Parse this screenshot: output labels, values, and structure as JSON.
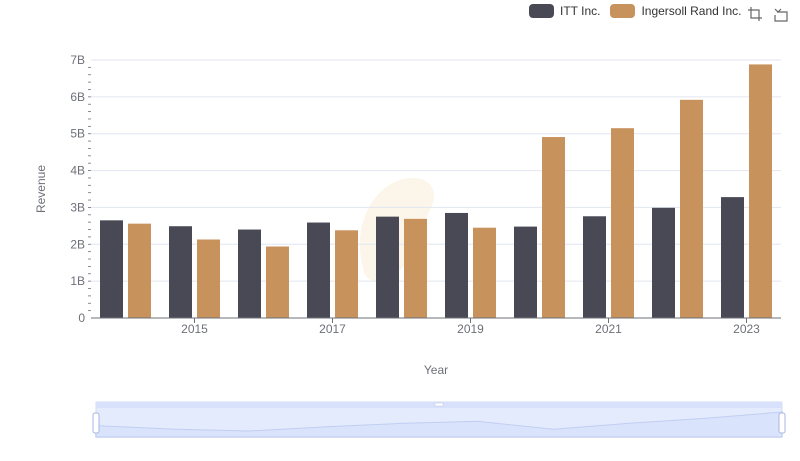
{
  "chart_data": {
    "type": "bar",
    "xlabel": "Year",
    "ylabel": "Revenue",
    "x": [
      2014,
      2015,
      2016,
      2017,
      2018,
      2019,
      2020,
      2021,
      2022,
      2023
    ],
    "x_tick_labels": [
      "2015",
      "2017",
      "2019",
      "2021",
      "2023"
    ],
    "ylim": [
      0,
      7000000000
    ],
    "y_tick_labels": [
      "0",
      "1B",
      "2B",
      "3B",
      "4B",
      "5B",
      "6B",
      "7B"
    ],
    "grid": true,
    "legend_position": "top-right",
    "series": [
      {
        "name": "ITT Inc.",
        "color": "#484955",
        "values": [
          2650000000,
          2490000000,
          2400000000,
          2590000000,
          2750000000,
          2850000000,
          2480000000,
          2760000000,
          2990000000,
          3280000000
        ]
      },
      {
        "name": "Ingersoll Rand Inc.",
        "color": "#c8925c",
        "values": [
          2560000000,
          2130000000,
          1940000000,
          2380000000,
          2690000000,
          2450000000,
          4910000000,
          5150000000,
          5920000000,
          6880000000
        ]
      }
    ],
    "data_zoom": {
      "start_percent": 0,
      "end_percent": 100
    }
  },
  "toolbox": {
    "zoom_icon": "zoom-icon",
    "reset_icon": "restore-icon"
  }
}
